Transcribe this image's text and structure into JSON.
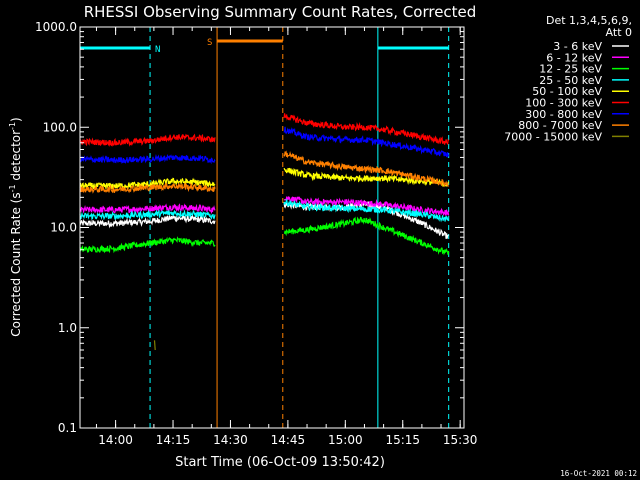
{
  "chart_data": {
    "type": "line",
    "title": "RHESSI Observing Summary Count Rates, Corrected",
    "xlabel": "Start Time (06-Oct-09 13:50:42)",
    "ylabel_main": "Corrected Count Rate (s",
    "ylabel_sup1": "-1",
    "ylabel_mid": " detector",
    "ylabel_sup2": "-1",
    "ylabel_end": ")",
    "y_scale": "log",
    "ylim": [
      0.1,
      1000
    ],
    "xlim": [
      "13:50:42",
      "15:31:00"
    ],
    "y_ticks": [
      "0.1",
      "1.0",
      "10.0",
      "100.0",
      "1000.0"
    ],
    "x_ticks": [
      "14:00",
      "14:15",
      "14:30",
      "14:45",
      "15:00",
      "15:15",
      "15:30"
    ],
    "legend_header_1": "Det 1,3,4,5,6,9,",
    "legend_header_2": "Att 0",
    "legend_placement": "right",
    "timestamp": "16-Oct-2021 00:12",
    "flags": [
      {
        "label": "N",
        "color": "#00ffff",
        "start": "13:50:42",
        "end": "14:09:00"
      },
      {
        "label": "S",
        "color": "#ff8000",
        "start": "14:26:30",
        "end": "14:43:40"
      },
      {
        "label": "",
        "color": "#00ffff",
        "start": "15:08:30",
        "end": "15:27:00"
      }
    ],
    "vlines": [
      {
        "time": "13:50:42",
        "color": "#00ffff",
        "style": "solid"
      },
      {
        "time": "14:09:00",
        "color": "#00ffff",
        "style": "dashed"
      },
      {
        "time": "14:26:30",
        "color": "#ff8000",
        "style": "solid"
      },
      {
        "time": "14:43:40",
        "color": "#ff8000",
        "style": "dashed"
      },
      {
        "time": "15:08:30",
        "color": "#00ffff",
        "style": "solid"
      },
      {
        "time": "15:27:00",
        "color": "#00ffff",
        "style": "dashed"
      }
    ],
    "series": [
      {
        "name": "3 - 6 keV",
        "color": "#ffffff",
        "segments": [
          {
            "x": [
              "13:50:42",
              "14:00",
              "14:09",
              "14:15",
              "14:22",
              "14:26"
            ],
            "y": [
              11,
              11,
              11.5,
              12.5,
              12,
              11.5
            ]
          },
          {
            "x": [
              "14:44",
              "14:50",
              "15:00",
              "15:05",
              "15:10",
              "15:20",
              "15:27"
            ],
            "y": [
              17,
              16,
              16,
              17,
              16,
              11,
              8
            ]
          }
        ]
      },
      {
        "name": "6 - 12 keV",
        "color": "#ff00ff",
        "segments": [
          {
            "x": [
              "13:50:42",
              "14:00",
              "14:09",
              "14:15",
              "14:22",
              "14:26"
            ],
            "y": [
              15,
              15,
              15.5,
              16,
              15.5,
              15
            ]
          },
          {
            "x": [
              "14:44",
              "14:50",
              "15:00",
              "15:10",
              "15:20",
              "15:27"
            ],
            "y": [
              20,
              18,
              18,
              17,
              15,
              14
            ]
          }
        ]
      },
      {
        "name": "12 - 25 keV",
        "color": "#00ff00",
        "segments": [
          {
            "x": [
              "13:50:42",
              "14:00",
              "14:09",
              "14:15",
              "14:22",
              "14:26"
            ],
            "y": [
              6,
              6.2,
              7,
              7.5,
              7,
              7
            ]
          },
          {
            "x": [
              "14:44",
              "14:50",
              "15:00",
              "15:05",
              "15:10",
              "15:20",
              "15:27"
            ],
            "y": [
              9,
              9.5,
              11,
              12,
              10,
              7,
              5.5
            ]
          }
        ]
      },
      {
        "name": "25 - 50 keV",
        "color": "#00ffff",
        "segments": [
          {
            "x": [
              "13:50:42",
              "14:00",
              "14:09",
              "14:15",
              "14:22",
              "14:26"
            ],
            "y": [
              13,
              13,
              13.5,
              14,
              13.5,
              13
            ]
          },
          {
            "x": [
              "14:44",
              "14:50",
              "15:00",
              "15:10",
              "15:20",
              "15:27"
            ],
            "y": [
              18,
              16,
              15.5,
              15,
              13.5,
              12
            ]
          }
        ]
      },
      {
        "name": "50 - 100 keV",
        "color": "#ffff00",
        "segments": [
          {
            "x": [
              "13:50:42",
              "14:00",
              "14:09",
              "14:15",
              "14:22",
              "14:26"
            ],
            "y": [
              26,
              26,
              27,
              29,
              28,
              27
            ]
          },
          {
            "x": [
              "14:44",
              "14:50",
              "15:00",
              "15:10",
              "15:20",
              "15:27"
            ],
            "y": [
              38,
              33,
              31,
              31,
              29,
              27
            ]
          }
        ]
      },
      {
        "name": "100 - 300 keV",
        "color": "#ff0000",
        "segments": [
          {
            "x": [
              "13:50:42",
              "14:00",
              "14:09",
              "14:15",
              "14:22",
              "14:26"
            ],
            "y": [
              72,
              70,
              73,
              80,
              78,
              75
            ]
          },
          {
            "x": [
              "14:44",
              "14:50",
              "15:00",
              "15:05",
              "15:10",
              "15:20",
              "15:27"
            ],
            "y": [
              130,
              110,
              100,
              100,
              95,
              80,
              70
            ]
          }
        ]
      },
      {
        "name": "300 - 800 keV",
        "color": "#0000ff",
        "segments": [
          {
            "x": [
              "13:50:42",
              "14:00",
              "14:09",
              "14:15",
              "14:22",
              "14:26"
            ],
            "y": [
              48,
              47,
              48,
              50,
              49,
              47
            ]
          },
          {
            "x": [
              "14:44",
              "14:50",
              "15:00",
              "15:05",
              "15:10",
              "15:20",
              "15:27"
            ],
            "y": [
              95,
              80,
              75,
              75,
              70,
              60,
              53
            ]
          }
        ]
      },
      {
        "name": "800 - 7000 keV",
        "color": "#ff8000",
        "segments": [
          {
            "x": [
              "13:50:42",
              "14:00",
              "14:09",
              "14:15",
              "14:22",
              "14:26"
            ],
            "y": [
              24,
              24,
              25,
              26,
              25,
              24
            ]
          },
          {
            "x": [
              "14:44",
              "14:50",
              "15:00",
              "15:10",
              "15:20",
              "15:27"
            ],
            "y": [
              55,
              45,
              40,
              37,
              31,
              27
            ]
          }
        ]
      },
      {
        "name": "7000 - 15000 keV",
        "color": "#808000",
        "segments": [
          {
            "x": [
              "14:10:10",
              "14:10:20"
            ],
            "y": [
              0.75,
              0.6
            ]
          }
        ]
      }
    ]
  }
}
